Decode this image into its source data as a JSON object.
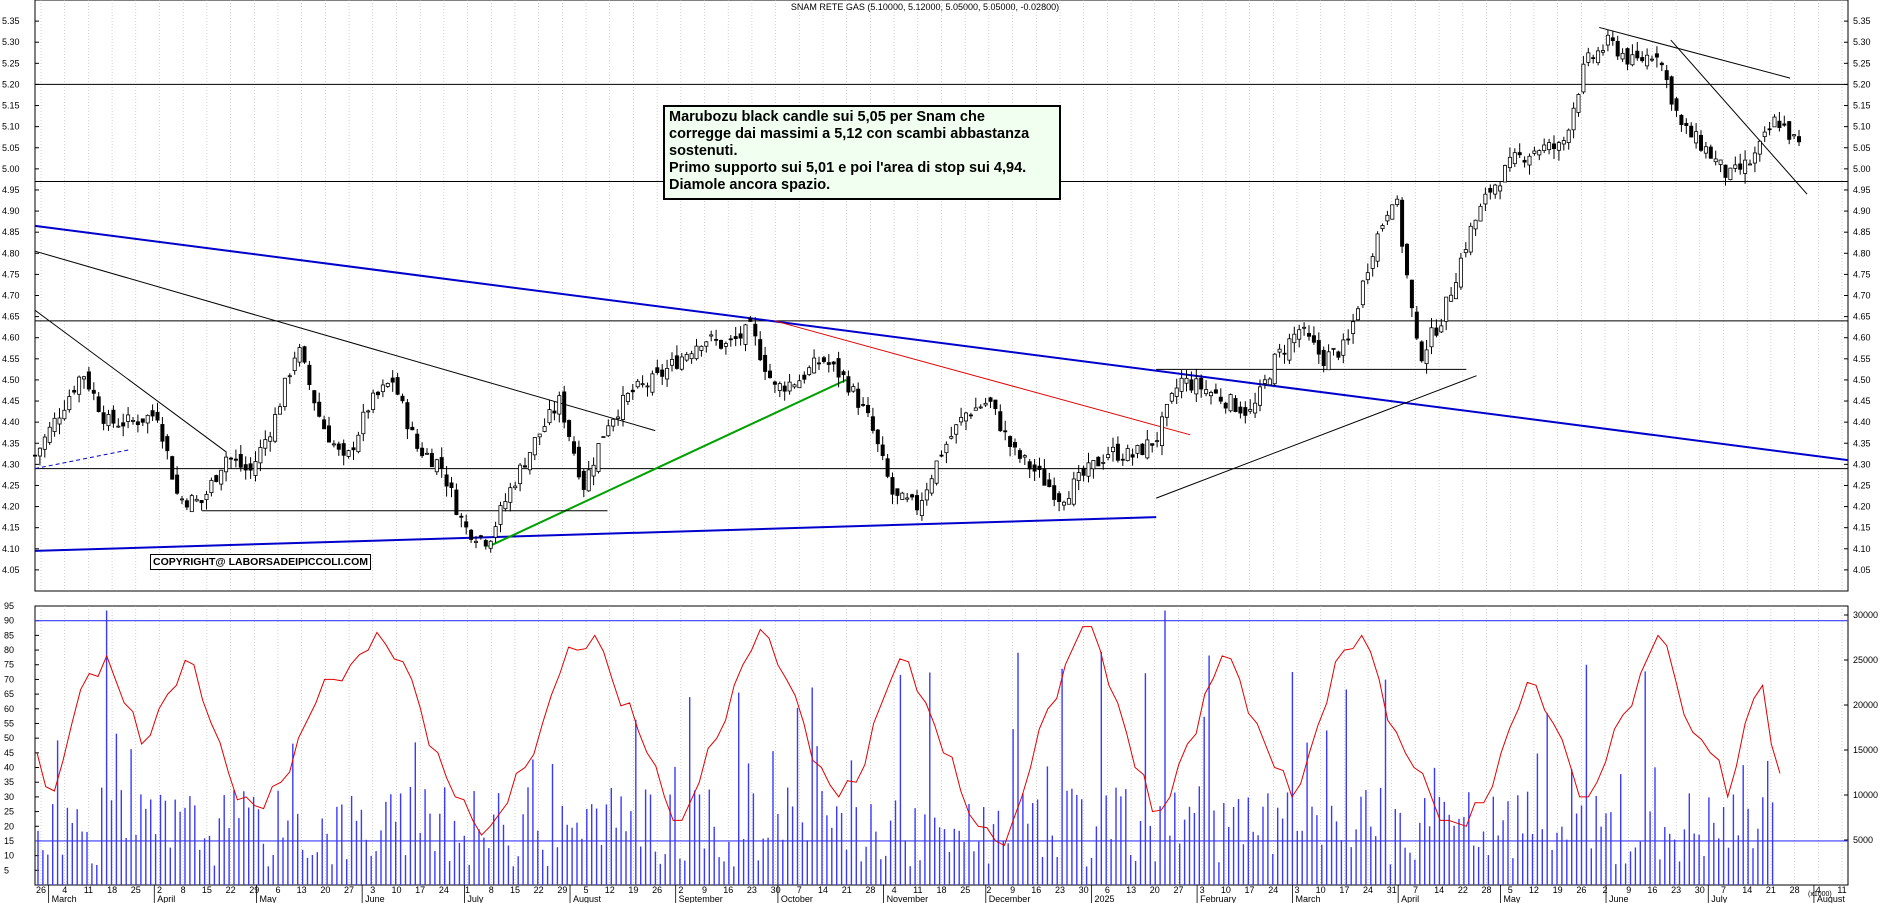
{
  "title_text": "SNAM RETE GAS (5.10000, 5.12000, 5.05000, 5.05000, -0.02800)",
  "annotation_lines": [
    "Marubozu black candle sui 5,05 per Snam che",
    "corregge dai massimi a 5,12 con scambi abbastanza",
    "sostenuti.",
    "Primo supporto sui 5,01 e poi l'area di stop sui 4,94.",
    "Diamole ancora spazio."
  ],
  "copyright": "COPYRIGHT@ LABORSADEIPICCOLI.COM",
  "volume_scale_label": "(x1000)",
  "colors": {
    "grid": "#b4b4b4",
    "blue_trend": "#0000cc",
    "red_trend": "#e00000",
    "green_trend": "#00a000",
    "rsi": "#e00000",
    "volume": "#3a3aff"
  },
  "chart_data": [
    {
      "type": "candlestick",
      "title": "SNAM RETE GAS (5.10000, 5.12000, 5.05000, 5.05000, -0.02800)",
      "ylim": [
        4.0,
        5.4
      ],
      "y_ticks": [
        "4.05",
        "4.10",
        "4.15",
        "4.20",
        "4.25",
        "4.30",
        "4.35",
        "4.40",
        "4.45",
        "4.50",
        "4.55",
        "4.60",
        "4.65",
        "4.70",
        "4.75",
        "4.80",
        "4.85",
        "4.90",
        "4.95",
        "5.00",
        "5.05",
        "5.10",
        "5.15",
        "5.20",
        "5.25",
        "5.30",
        "5.35"
      ],
      "x_day_ticks": [
        "26",
        "4",
        "11",
        "18",
        "25",
        "2",
        "8",
        "15",
        "22",
        "29",
        "6",
        "13",
        "20",
        "27",
        "3",
        "10",
        "17",
        "24",
        "1",
        "8",
        "15",
        "22",
        "29",
        "5",
        "12",
        "19",
        "26",
        "2",
        "9",
        "16",
        "23",
        "30",
        "7",
        "14",
        "21",
        "28",
        "4",
        "11",
        "18",
        "25",
        "2",
        "9",
        "16",
        "23",
        "30",
        "6",
        "13",
        "20",
        "27",
        "3",
        "10",
        "17",
        "24",
        "3",
        "10",
        "17",
        "24",
        "31",
        "7",
        "14",
        "22",
        "28",
        "5",
        "12",
        "19",
        "26",
        "2",
        "9",
        "16",
        "23",
        "30",
        "7",
        "14",
        "21",
        "28",
        "4",
        "11"
      ],
      "x_month_labels": [
        "March",
        "April",
        "May",
        "June",
        "July",
        "August",
        "September",
        "October",
        "November",
        "December",
        "2025",
        "February",
        "March",
        "April",
        "May",
        "June",
        "July",
        "August"
      ],
      "horizontal_levels": [
        5.2,
        4.97,
        4.64,
        4.29
      ],
      "close_path": [
        {
          "date": "2024-02-26",
          "close": 4.32
        },
        {
          "date": "2024-03-11",
          "close": 4.52
        },
        {
          "date": "2024-03-18",
          "close": 4.4
        },
        {
          "date": "2024-03-25",
          "close": 4.4
        },
        {
          "date": "2024-04-02",
          "close": 4.42
        },
        {
          "date": "2024-04-08",
          "close": 4.22
        },
        {
          "date": "2024-04-15",
          "close": 4.21
        },
        {
          "date": "2024-04-22",
          "close": 4.32
        },
        {
          "date": "2024-04-29",
          "close": 4.28
        },
        {
          "date": "2024-05-06",
          "close": 4.4
        },
        {
          "date": "2024-05-13",
          "close": 4.58
        },
        {
          "date": "2024-05-20",
          "close": 4.4
        },
        {
          "date": "2024-05-27",
          "close": 4.3
        },
        {
          "date": "2024-06-03",
          "close": 4.44
        },
        {
          "date": "2024-06-10",
          "close": 4.5
        },
        {
          "date": "2024-06-17",
          "close": 4.34
        },
        {
          "date": "2024-06-24",
          "close": 4.3
        },
        {
          "date": "2024-07-01",
          "close": 4.15
        },
        {
          "date": "2024-07-08",
          "close": 4.12
        },
        {
          "date": "2024-07-15",
          "close": 4.25
        },
        {
          "date": "2024-07-22",
          "close": 4.36
        },
        {
          "date": "2024-07-29",
          "close": 4.45
        },
        {
          "date": "2024-08-05",
          "close": 4.25
        },
        {
          "date": "2024-08-12",
          "close": 4.4
        },
        {
          "date": "2024-08-19",
          "close": 4.47
        },
        {
          "date": "2024-08-26",
          "close": 4.5
        },
        {
          "date": "2024-09-02",
          "close": 4.55
        },
        {
          "date": "2024-09-09",
          "close": 4.6
        },
        {
          "date": "2024-09-16",
          "close": 4.58
        },
        {
          "date": "2024-09-23",
          "close": 4.62
        },
        {
          "date": "2024-09-30",
          "close": 4.48
        },
        {
          "date": "2024-10-07",
          "close": 4.5
        },
        {
          "date": "2024-10-14",
          "close": 4.55
        },
        {
          "date": "2024-10-21",
          "close": 4.5
        },
        {
          "date": "2024-10-28",
          "close": 4.4
        },
        {
          "date": "2024-11-04",
          "close": 4.22
        },
        {
          "date": "2024-11-11",
          "close": 4.2
        },
        {
          "date": "2024-11-18",
          "close": 4.33
        },
        {
          "date": "2024-11-25",
          "close": 4.42
        },
        {
          "date": "2024-12-02",
          "close": 4.45
        },
        {
          "date": "2024-12-09",
          "close": 4.33
        },
        {
          "date": "2024-12-16",
          "close": 4.28
        },
        {
          "date": "2024-12-23",
          "close": 4.22
        },
        {
          "date": "2025-01-06",
          "close": 4.33
        },
        {
          "date": "2025-01-13",
          "close": 4.32
        },
        {
          "date": "2025-01-20",
          "close": 4.36
        },
        {
          "date": "2025-01-27",
          "close": 4.5
        },
        {
          "date": "2025-02-03",
          "close": 4.48
        },
        {
          "date": "2025-02-10",
          "close": 4.45
        },
        {
          "date": "2025-02-17",
          "close": 4.42
        },
        {
          "date": "2025-02-24",
          "close": 4.55
        },
        {
          "date": "2025-03-03",
          "close": 4.62
        },
        {
          "date": "2025-03-10",
          "close": 4.55
        },
        {
          "date": "2025-03-17",
          "close": 4.58
        },
        {
          "date": "2025-03-24",
          "close": 4.8
        },
        {
          "date": "2025-03-31",
          "close": 4.95
        },
        {
          "date": "2025-04-07",
          "close": 4.55
        },
        {
          "date": "2025-04-14",
          "close": 4.65
        },
        {
          "date": "2025-04-22",
          "close": 4.85
        },
        {
          "date": "2025-04-28",
          "close": 4.95
        },
        {
          "date": "2025-05-05",
          "close": 5.02
        },
        {
          "date": "2025-05-12",
          "close": 5.05
        },
        {
          "date": "2025-05-19",
          "close": 5.05
        },
        {
          "date": "2025-05-26",
          "close": 5.25
        },
        {
          "date": "2025-06-02",
          "close": 5.3
        },
        {
          "date": "2025-06-09",
          "close": 5.25
        },
        {
          "date": "2025-06-16",
          "close": 5.28
        },
        {
          "date": "2025-06-23",
          "close": 5.1
        },
        {
          "date": "2025-06-30",
          "close": 5.05
        },
        {
          "date": "2025-07-07",
          "close": 4.98
        },
        {
          "date": "2025-07-14",
          "close": 5.02
        },
        {
          "date": "2025-07-21",
          "close": 5.12
        },
        {
          "date": "2025-07-28",
          "close": 5.05
        }
      ]
    },
    {
      "type": "line",
      "ylim": [
        0,
        95
      ],
      "y_ticks": [
        "5",
        "10",
        "15",
        "20",
        "25",
        "30",
        "35",
        "40",
        "45",
        "50",
        "55",
        "60",
        "65",
        "70",
        "75",
        "80",
        "85",
        "90",
        "95"
      ],
      "horizontal_levels": [
        90,
        15
      ],
      "series": [
        {
          "values": [
            45,
            32,
            55,
            72,
            78,
            62,
            48,
            60,
            68,
            75,
            55,
            38,
            30,
            26,
            35,
            50,
            62,
            70,
            75,
            80,
            82,
            76,
            60,
            45,
            30,
            22,
            20,
            28,
            40,
            55,
            72,
            80,
            85,
            70,
            62,
            45,
            30,
            22,
            35,
            50,
            68,
            80,
            84,
            70,
            55,
            40,
            30,
            35,
            55,
            70,
            76,
            62,
            45,
            32,
            20,
            15,
            22,
            40,
            60,
            75,
            88,
            80,
            62,
            40,
            25,
            30,
            48,
            65,
            78,
            70,
            55,
            40,
            30,
            45,
            62,
            80,
            85,
            70,
            52,
            40,
            30,
            22,
            20,
            28,
            45,
            60,
            68,
            55,
            40,
            30,
            42,
            58,
            72,
            85,
            70,
            52,
            45,
            30,
            55,
            68,
            38
          ]
        }
      ]
    },
    {
      "type": "bar",
      "ylim": [
        0,
        31000
      ],
      "y_ticks": [
        "5000",
        "10000",
        "15000",
        "20000",
        "25000",
        "30000"
      ],
      "horizontal_levels": [
        5500
      ]
    }
  ]
}
